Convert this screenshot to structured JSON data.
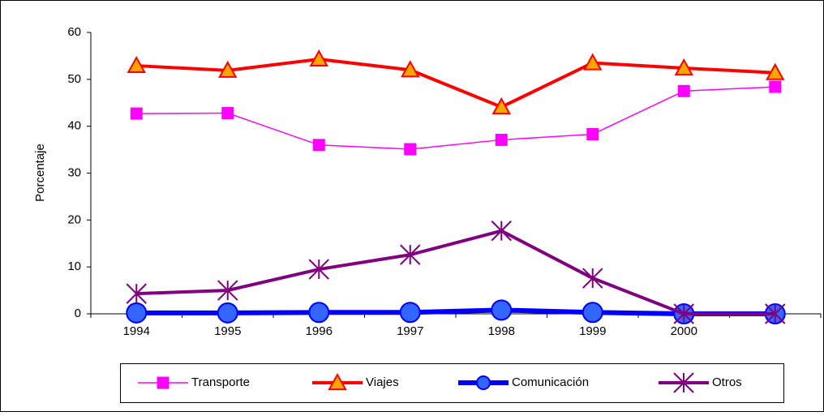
{
  "chart_data": {
    "type": "line",
    "y_label": "Porcentaje",
    "categories": [
      "1994",
      "1995",
      "1996",
      "1997",
      "1998",
      "1999",
      "2000",
      null
    ],
    "ylim": [
      0,
      60
    ],
    "yticks": [
      0,
      10,
      20,
      30,
      40,
      50,
      60
    ],
    "legend": "bottom",
    "series": [
      {
        "name": "Transporte",
        "color": "#ff00ff",
        "marker": "square",
        "marker_color": "#ff00ff",
        "line_width": 1.5,
        "values": [
          42.7,
          42.8,
          36.0,
          35.1,
          37.1,
          38.3,
          47.5,
          48.4
        ]
      },
      {
        "name": "Viajes",
        "color": "#ff0000",
        "marker": "triangle",
        "marker_color": "#ffa500",
        "line_width": 4,
        "values": [
          52.9,
          51.9,
          54.3,
          52.0,
          44.1,
          53.5,
          52.4,
          51.4
        ]
      },
      {
        "name": "Comunicación",
        "color": "#0000ff",
        "marker": "circle",
        "marker_color": "#3366ff",
        "line_width": 6,
        "values": [
          0.2,
          0.2,
          0.3,
          0.3,
          0.8,
          0.3,
          0,
          0
        ]
      },
      {
        "name": "Otros",
        "color": "#800080",
        "marker": "star",
        "marker_color": "#800080",
        "line_width": 4,
        "values": [
          4.3,
          5.0,
          9.5,
          12.6,
          17.7,
          7.6,
          0,
          0
        ]
      }
    ]
  }
}
